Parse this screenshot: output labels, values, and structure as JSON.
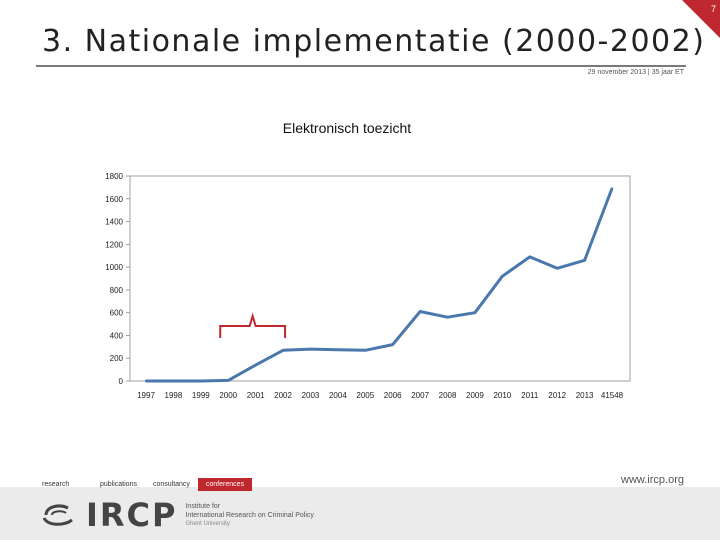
{
  "page_number": "7",
  "slide_title": "3. Nationale implementatie (2000-2002)",
  "date_line": "29 november 2013 | 35 jaar ET",
  "chart_data": {
    "type": "line",
    "title": "Elektronisch toezicht",
    "categories": [
      "1997",
      "1998",
      "1999",
      "2000",
      "2001",
      "2002",
      "2003",
      "2004",
      "2005",
      "2006",
      "2007",
      "2008",
      "2009",
      "2010",
      "2011",
      "2012",
      "2013",
      "41548"
    ],
    "series": [
      {
        "values": [
          0,
          0,
          0,
          5,
          140,
          270,
          280,
          275,
          270,
          320,
          610,
          560,
          600,
          920,
          1090,
          990,
          1060,
          1690
        ]
      }
    ],
    "ylim": [
      0,
      1800
    ],
    "yticks": [
      0,
      200,
      400,
      600,
      800,
      1000,
      1200,
      1400,
      1600,
      1800
    ],
    "grid": false,
    "line_color": "#4a78ad",
    "annotation": {
      "type": "bracket",
      "from_category": "2000",
      "to_category": "2002",
      "color": "#c0282f"
    }
  },
  "footer": {
    "tags": [
      "research",
      "publications",
      "consultancy",
      "conferences"
    ],
    "active_tag": "conferences",
    "website": "www.ircp.org",
    "logo_text": "IRCP",
    "logo_sub_1": "Institute for",
    "logo_sub_2": "International Research on Criminal Policy",
    "logo_sub_3": "Ghent University"
  },
  "colors": {
    "accent": "#c0282f",
    "rule": "#7a7a7a"
  }
}
